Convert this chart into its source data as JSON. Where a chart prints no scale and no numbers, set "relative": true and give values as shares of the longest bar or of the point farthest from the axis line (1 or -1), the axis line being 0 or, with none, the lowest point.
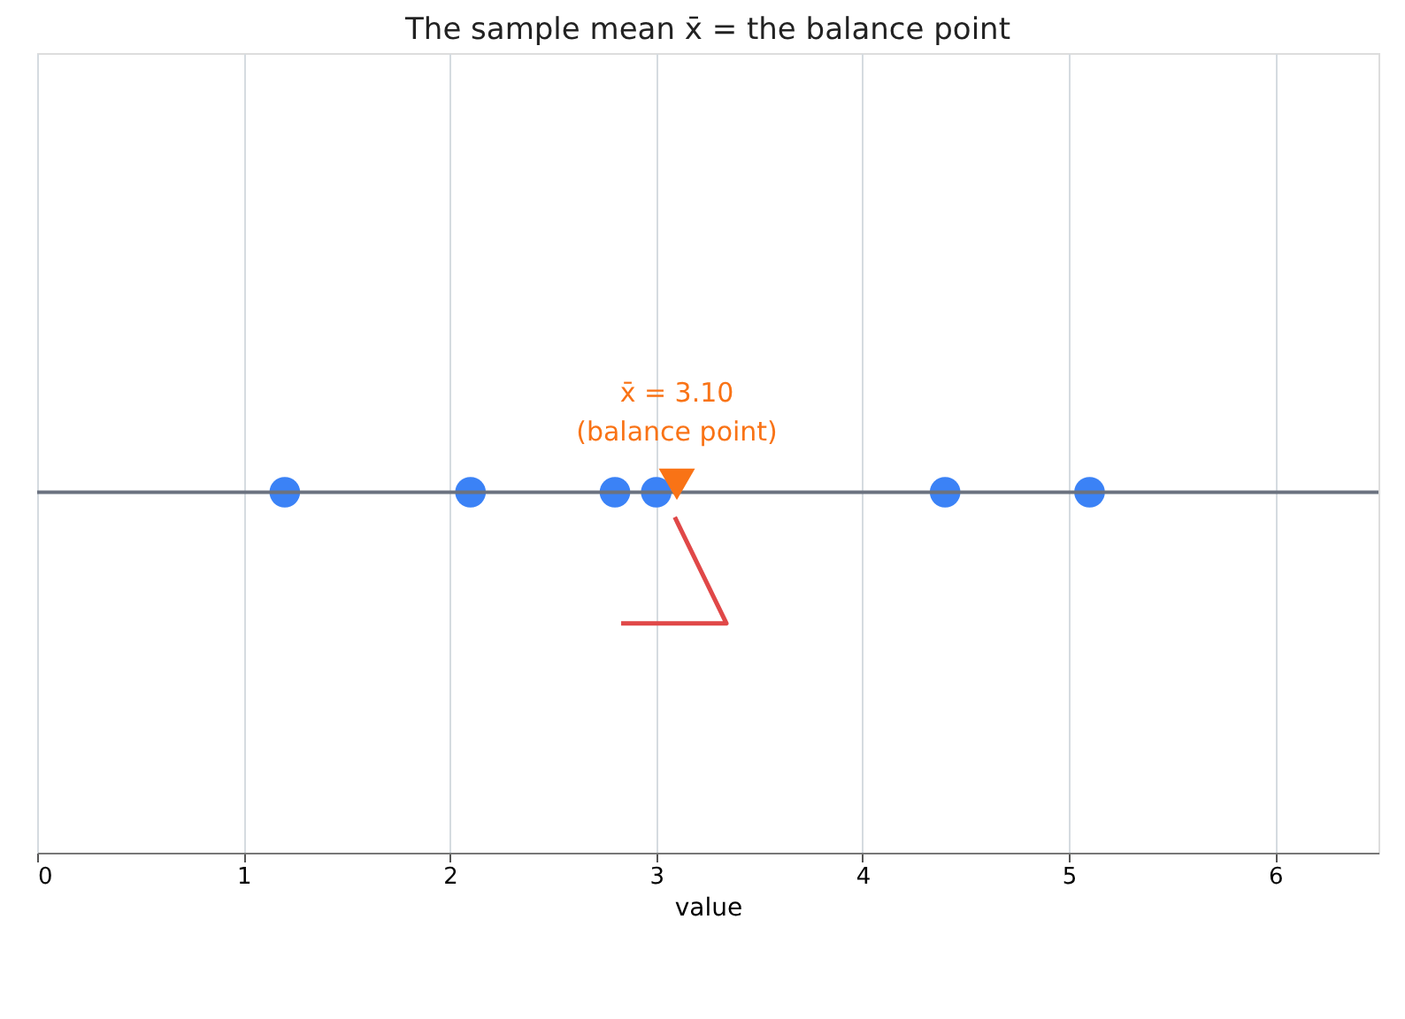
{
  "chart_data": {
    "type": "scatter",
    "title": "The sample mean x̄ = the balance point",
    "xlabel": "value",
    "relative": true,
    "xlim": [
      0,
      6.5
    ],
    "xticks": [
      0,
      1,
      2,
      3,
      4,
      5,
      6
    ],
    "tick_labels": "x",
    "grid": "x",
    "series": [
      {
        "color": "#3b82f6",
        "marker": "circle",
        "x": [
          1.2,
          2.1,
          2.8,
          3.0,
          4.4,
          5.1
        ],
        "values": [
          0,
          0,
          0,
          0,
          0,
          0
        ]
      },
      {
        "type": "line",
        "color": "#e04848",
        "marker": "none",
        "x": [
          3.09,
          3.34,
          2.83
        ],
        "values": [
          -0.19,
          -1,
          -1
        ]
      },
      {
        "color": "#f97316",
        "marker": "triangle",
        "x": [
          3.1
        ],
        "values": [
          0.06
        ]
      }
    ],
    "ref_lines": [
      {
        "axis": "y",
        "value": 0,
        "color": "#6b7280"
      }
    ],
    "annotations": [
      "x̄ = 3.10\n(balance point)"
    ]
  }
}
